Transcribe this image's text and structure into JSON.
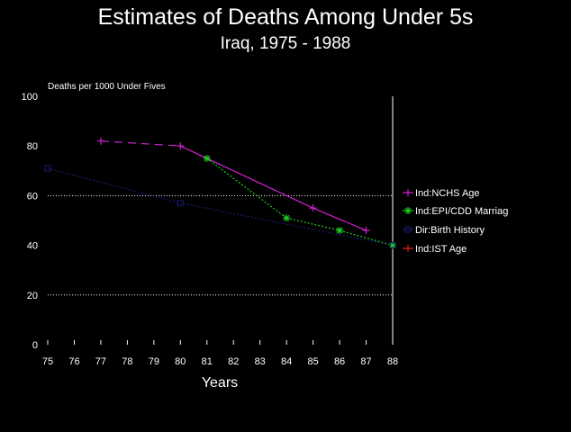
{
  "chart_data": {
    "type": "line",
    "title": "Estimates of Deaths Among Under 5s",
    "subtitle": "Iraq, 1975 - 1988",
    "ylabel": "Deaths per 1000 Under Fives",
    "xlabel": "Years",
    "ylim": [
      0,
      100
    ],
    "yticks": [
      0,
      20,
      40,
      60,
      80,
      100
    ],
    "xticks": [
      "75",
      "76",
      "77",
      "78",
      "79",
      "80",
      "81",
      "82",
      "83",
      "84",
      "85",
      "86",
      "87",
      "88"
    ],
    "grid": "horizontal dotted at 20 and 60",
    "legend_position": "right",
    "series": [
      {
        "name": "Ind:NCHS Age",
        "color": "#cc22cc",
        "marker": "plus",
        "points": [
          [
            77,
            82
          ],
          [
            80,
            80
          ],
          [
            85,
            55
          ],
          [
            87,
            46
          ]
        ],
        "dashed_segment_end_index": 1
      },
      {
        "name": "Ind:EPI/CDD Marriag",
        "color": "#22cc22",
        "marker": "star",
        "points": [
          [
            81,
            75
          ],
          [
            84,
            51
          ],
          [
            86,
            46
          ],
          [
            88,
            40
          ]
        ],
        "dashed_segment_end_index": 0
      },
      {
        "name": "Dir:Birth History",
        "color": "#1a1a6e",
        "marker": "square",
        "points": [
          [
            75,
            71
          ],
          [
            80,
            57
          ],
          [
            88,
            40
          ]
        ],
        "dashed_segment_end_index": 0
      },
      {
        "name": "Ind:IST Age",
        "color": "#dd2222",
        "marker": "plus",
        "points": [],
        "dashed_segment_end_index": 0
      }
    ]
  }
}
